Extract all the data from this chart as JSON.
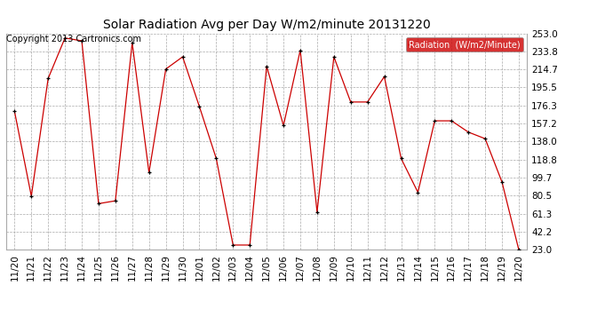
{
  "title": "Solar Radiation Avg per Day W/m2/minute 20131220",
  "copyright": "Copyright 2013 Cartronics.com",
  "legend_label": "Radiation  (W/m2/Minute)",
  "dates": [
    "11/20",
    "11/21",
    "11/22",
    "11/23",
    "11/24",
    "11/25",
    "11/26",
    "11/27",
    "11/28",
    "11/29",
    "11/30",
    "12/01",
    "12/02",
    "12/03",
    "12/04",
    "12/05",
    "12/06",
    "12/07",
    "12/08",
    "12/09",
    "12/10",
    "12/11",
    "12/12",
    "12/13",
    "12/14",
    "12/15",
    "12/16",
    "12/17",
    "12/18",
    "12/19",
    "12/20"
  ],
  "values": [
    170,
    80,
    205,
    248,
    245,
    72,
    75,
    243,
    105,
    215,
    228,
    175,
    120,
    28,
    28,
    218,
    155,
    235,
    63,
    228,
    180,
    180,
    207,
    120,
    84,
    160,
    160,
    148,
    141,
    95,
    23
  ],
  "ylim": [
    23.0,
    253.0
  ],
  "yticks": [
    23.0,
    42.2,
    61.3,
    80.5,
    99.7,
    118.8,
    138.0,
    157.2,
    176.3,
    195.5,
    214.7,
    233.8,
    253.0
  ],
  "line_color": "#cc0000",
  "marker_color": "#000000",
  "bg_color": "#ffffff",
  "grid_color": "#aaaaaa",
  "legend_bg": "#cc0000",
  "legend_text_color": "#ffffff",
  "title_fontsize": 10,
  "copyright_fontsize": 7,
  "tick_fontsize": 7.5,
  "legend_fontsize": 7
}
